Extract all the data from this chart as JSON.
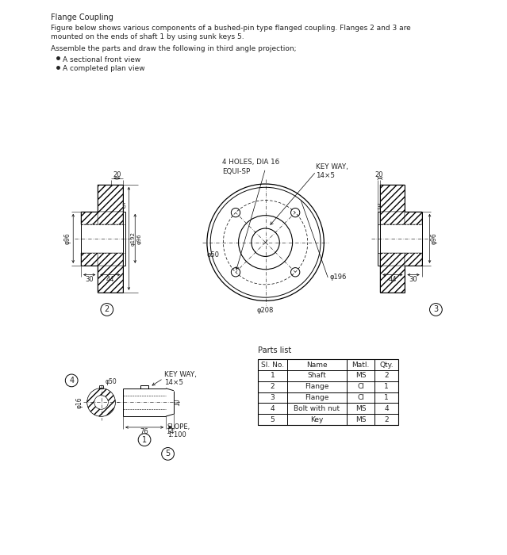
{
  "title": "Flange Coupling",
  "desc1": "Figure below shows various components of a bushed-pin type flanged coupling. Flanges 2 and 3 are",
  "desc2": "mounted on the ends of shaft 1 by using sunk keys 5.",
  "instruction": "Assemble the parts and draw the following in third angle projection;",
  "bullets": [
    "A sectional front view",
    "A completed plan view"
  ],
  "parts_list_title": "Parts list",
  "table_headers": [
    "Sl. No.",
    "Name",
    "Matl.",
    "Qty."
  ],
  "table_rows": [
    [
      "1",
      "Shaft",
      "MS",
      "2"
    ],
    [
      "2",
      "Flange",
      "CI",
      "1"
    ],
    [
      "3",
      "Flange",
      "CI",
      "1"
    ],
    [
      "4",
      "Bolt with nut",
      "MS",
      "4"
    ],
    [
      "5",
      "Key",
      "MS",
      "2"
    ]
  ],
  "bg_color": "#ffffff",
  "lc": "#000000",
  "tc": "#222222"
}
